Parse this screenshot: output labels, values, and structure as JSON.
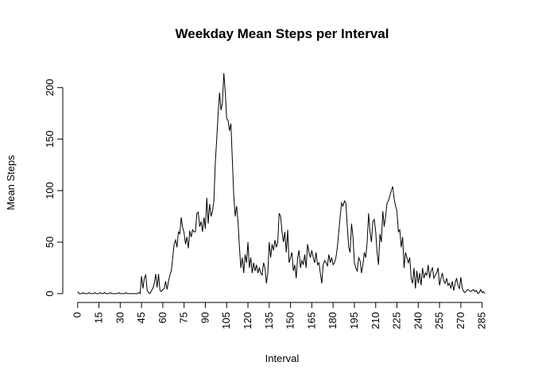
{
  "chart_data": {
    "type": "line",
    "title": "Weekday Mean Steps per Interval",
    "x_label": "Interval",
    "y_label": "Mean Steps",
    "color": "#000000",
    "x": [
      0,
      1,
      2,
      3,
      4,
      5,
      6,
      7,
      8,
      9,
      10,
      11,
      12,
      13,
      14,
      15,
      16,
      17,
      18,
      19,
      20,
      21,
      22,
      23,
      24,
      25,
      26,
      27,
      28,
      29,
      30,
      31,
      32,
      33,
      34,
      35,
      36,
      37,
      38,
      39,
      40,
      41,
      42,
      43,
      44,
      45,
      46,
      47,
      48,
      49,
      50,
      51,
      52,
      53,
      54,
      55,
      56,
      57,
      58,
      59,
      60,
      61,
      62,
      63,
      64,
      65,
      66,
      67,
      68,
      69,
      70,
      71,
      72,
      73,
      74,
      75,
      76,
      77,
      78,
      79,
      80,
      81,
      82,
      83,
      84,
      85,
      86,
      87,
      88,
      89,
      90,
      91,
      92,
      93,
      94,
      95,
      96,
      97,
      98,
      99,
      100,
      101,
      102,
      103,
      104,
      105,
      106,
      107,
      108,
      109,
      110,
      111,
      112,
      113,
      114,
      115,
      116,
      117,
      118,
      119,
      120,
      121,
      122,
      123,
      124,
      125,
      126,
      127,
      128,
      129,
      130,
      131,
      132,
      133,
      134,
      135,
      136,
      137,
      138,
      139,
      140,
      141,
      142,
      143,
      144,
      145,
      146,
      147,
      148,
      149,
      150,
      151,
      152,
      153,
      154,
      155,
      156,
      157,
      158,
      159,
      160,
      161,
      162,
      163,
      164,
      165,
      166,
      167,
      168,
      169,
      170,
      171,
      172,
      173,
      174,
      175,
      176,
      177,
      178,
      179,
      180,
      181,
      182,
      183,
      184,
      185,
      186,
      187,
      188,
      189,
      190,
      191,
      192,
      193,
      194,
      195,
      196,
      197,
      198,
      199,
      200,
      201,
      202,
      203,
      204,
      205,
      206,
      207,
      208,
      209,
      210,
      211,
      212,
      213,
      214,
      215,
      216,
      217,
      218,
      219,
      220,
      221,
      222,
      223,
      224,
      225,
      226,
      227,
      228,
      229,
      230,
      231,
      232,
      233,
      234,
      235,
      236,
      237,
      238,
      239,
      240,
      241,
      242,
      243,
      244,
      245,
      246,
      247,
      248,
      249,
      250,
      251,
      252,
      253,
      254,
      255,
      256,
      257,
      258,
      259,
      260,
      261,
      262,
      263,
      264,
      265,
      266,
      267,
      268,
      269,
      270,
      271,
      272,
      273,
      274,
      275,
      276,
      277,
      278,
      279,
      280,
      281,
      282,
      283,
      284,
      285,
      286,
      287
    ],
    "values": [
      2,
      0,
      0,
      0,
      1,
      0,
      0,
      0,
      1,
      0,
      0,
      0,
      1,
      0,
      0,
      0,
      1,
      0,
      0,
      1,
      0,
      0,
      0,
      1,
      0,
      0,
      0,
      0,
      0,
      1,
      0,
      0,
      0,
      0,
      1,
      0,
      0,
      0,
      0,
      0,
      0,
      0,
      0,
      1,
      0,
      17,
      5,
      15,
      18,
      3,
      1,
      0,
      3,
      5,
      10,
      19,
      6,
      19,
      3,
      2,
      4,
      5,
      12,
      4,
      12,
      18,
      22,
      35,
      48,
      52,
      45,
      60,
      58,
      74,
      64,
      59,
      48,
      55,
      44,
      61,
      55,
      62,
      60,
      60,
      78,
      79,
      65,
      70,
      60,
      74,
      63,
      93,
      68,
      87,
      75,
      80,
      90,
      127,
      150,
      175,
      195,
      178,
      185,
      214,
      196,
      170,
      168,
      158,
      165,
      130,
      95,
      75,
      85,
      70,
      45,
      25,
      35,
      20,
      38,
      30,
      50,
      25,
      35,
      20,
      30,
      22,
      28,
      20,
      25,
      20,
      18,
      30,
      25,
      10,
      20,
      50,
      35,
      48,
      42,
      52,
      45,
      50,
      78,
      75,
      60,
      50,
      60,
      40,
      62,
      30,
      35,
      40,
      22,
      28,
      15,
      35,
      42,
      25,
      32,
      28,
      38,
      25,
      48,
      40,
      35,
      42,
      35,
      30,
      40,
      28,
      30,
      20,
      10,
      28,
      32,
      30,
      27,
      38,
      30,
      35,
      28,
      30,
      35,
      45,
      60,
      75,
      88,
      85,
      90,
      88,
      65,
      45,
      40,
      68,
      55,
      30,
      25,
      22,
      35,
      32,
      20,
      28,
      40,
      35,
      50,
      78,
      60,
      50,
      70,
      72,
      60,
      40,
      28,
      58,
      50,
      80,
      65,
      75,
      88,
      90,
      95,
      100,
      104,
      92,
      85,
      80,
      60,
      62,
      45,
      55,
      25,
      40,
      35,
      30,
      35,
      15,
      10,
      25,
      5,
      22,
      10,
      20,
      8,
      25,
      15,
      20,
      18,
      28,
      15,
      22,
      25,
      15,
      18,
      20,
      25,
      8,
      15,
      20,
      12,
      10,
      15,
      8,
      10,
      5,
      12,
      3,
      10,
      15,
      8,
      5,
      16,
      5,
      2,
      1,
      3,
      4,
      3,
      2,
      3,
      4,
      2,
      3,
      0,
      1,
      4,
      1,
      2,
      0
    ],
    "xlim": [
      -10.48,
      297.48
    ],
    "ylim": [
      -8.56,
      222.56
    ],
    "xticks": [
      0,
      15,
      30,
      45,
      60,
      75,
      90,
      105,
      120,
      135,
      150,
      165,
      180,
      195,
      210,
      225,
      240,
      255,
      270,
      285
    ],
    "yticks": [
      0,
      50,
      100,
      150,
      200
    ]
  }
}
